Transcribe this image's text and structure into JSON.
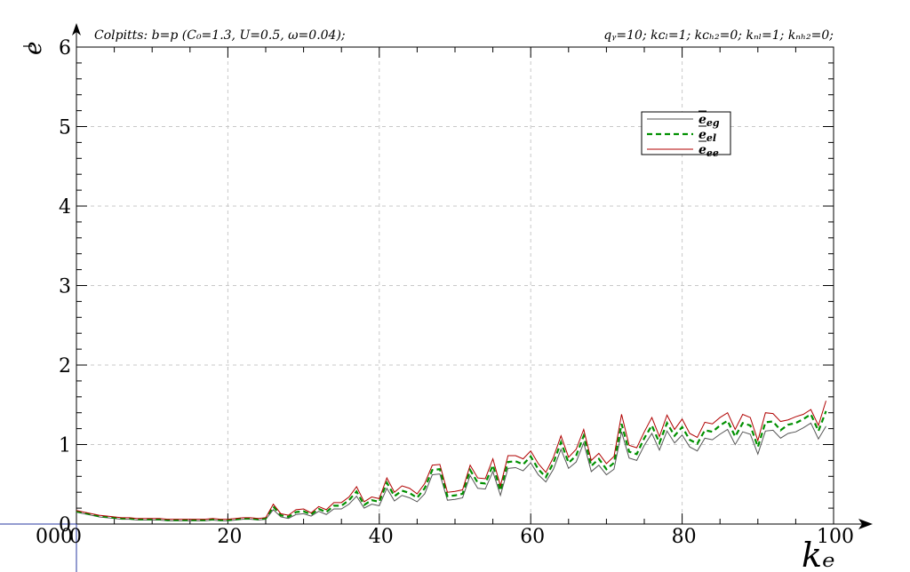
{
  "chart_data": {
    "type": "line",
    "title_left": "Colpitts: b=p (C₀=1.3, U=0.5, ω=0.04);",
    "title_right": "qᵧ=10; kᴄₗ=1; kᴄₕ₂=0; kₙₗ=1; kₙₕ₂=0;",
    "xlabel": "kₑ",
    "ylabel": "e",
    "xlim": [
      0,
      100
    ],
    "ylim": [
      0,
      6
    ],
    "x_ticks": [
      "0",
      "20",
      "40",
      "60",
      "80",
      "100"
    ],
    "x_tick_values": [
      0,
      20,
      40,
      60,
      80,
      100
    ],
    "x_origin_extra": "000",
    "y_ticks": [
      "0",
      "1",
      "2",
      "3",
      "4",
      "5",
      "6"
    ],
    "y_tick_values": [
      0,
      1,
      2,
      3,
      4,
      5,
      6
    ],
    "grid": true,
    "legend_position": "top-right",
    "x": [
      0,
      1,
      2,
      3,
      4,
      5,
      6,
      7,
      8,
      9,
      10,
      11,
      12,
      13,
      14,
      15,
      16,
      17,
      18,
      19,
      20,
      21,
      22,
      23,
      24,
      25,
      26,
      27,
      28,
      29,
      30,
      31,
      32,
      33,
      34,
      35,
      36,
      37,
      38,
      39,
      40,
      41,
      42,
      43,
      44,
      45,
      46,
      47,
      48,
      49,
      50,
      51,
      52,
      53,
      54,
      55,
      56,
      57,
      58,
      59,
      60,
      61,
      62,
      63,
      64,
      65,
      66,
      67,
      68,
      69,
      70,
      71,
      72,
      73,
      74,
      75,
      76,
      77,
      78,
      79,
      80,
      81,
      82,
      83,
      84,
      85,
      86,
      87,
      88,
      89,
      90,
      91,
      92,
      93,
      94,
      95,
      96,
      97,
      98,
      99
    ],
    "series": [
      {
        "name": "e_eg",
        "label_main": "e",
        "label_sub": "eg",
        "color": "#555555",
        "style": "solid",
        "values": [
          0.15,
          0.13,
          0.11,
          0.09,
          0.08,
          0.07,
          0.06,
          0.06,
          0.05,
          0.05,
          0.05,
          0.05,
          0.04,
          0.04,
          0.04,
          0.04,
          0.04,
          0.04,
          0.05,
          0.04,
          0.04,
          0.05,
          0.06,
          0.06,
          0.05,
          0.06,
          0.18,
          0.09,
          0.07,
          0.12,
          0.13,
          0.1,
          0.16,
          0.12,
          0.19,
          0.19,
          0.25,
          0.35,
          0.2,
          0.25,
          0.23,
          0.45,
          0.29,
          0.36,
          0.33,
          0.28,
          0.38,
          0.62,
          0.63,
          0.3,
          0.31,
          0.33,
          0.61,
          0.45,
          0.44,
          0.66,
          0.36,
          0.7,
          0.71,
          0.67,
          0.77,
          0.62,
          0.53,
          0.69,
          0.94,
          0.7,
          0.78,
          1.02,
          0.66,
          0.74,
          0.62,
          0.69,
          1.16,
          0.83,
          0.8,
          0.99,
          1.14,
          0.93,
          1.17,
          1.02,
          1.12,
          0.97,
          0.92,
          1.08,
          1.06,
          1.13,
          1.19,
          1.0,
          1.16,
          1.13,
          0.88,
          1.17,
          1.18,
          1.08,
          1.14,
          1.16,
          1.21,
          1.27,
          1.07,
          1.23
        ]
      },
      {
        "name": "e_el",
        "label_main": "e",
        "label_sub": "el",
        "color": "#009000",
        "style": "dashed",
        "values": [
          0.16,
          0.14,
          0.12,
          0.1,
          0.09,
          0.08,
          0.07,
          0.07,
          0.06,
          0.06,
          0.06,
          0.06,
          0.05,
          0.05,
          0.05,
          0.05,
          0.05,
          0.05,
          0.06,
          0.05,
          0.05,
          0.06,
          0.07,
          0.07,
          0.06,
          0.07,
          0.22,
          0.11,
          0.09,
          0.15,
          0.16,
          0.12,
          0.19,
          0.15,
          0.23,
          0.23,
          0.3,
          0.41,
          0.24,
          0.3,
          0.28,
          0.52,
          0.35,
          0.42,
          0.39,
          0.33,
          0.45,
          0.68,
          0.69,
          0.35,
          0.36,
          0.38,
          0.68,
          0.52,
          0.51,
          0.74,
          0.42,
          0.78,
          0.79,
          0.75,
          0.85,
          0.69,
          0.59,
          0.77,
          1.03,
          0.77,
          0.86,
          1.11,
          0.73,
          0.82,
          0.69,
          0.77,
          1.26,
          0.91,
          0.88,
          1.08,
          1.24,
          1.02,
          1.27,
          1.11,
          1.22,
          1.06,
          1.01,
          1.18,
          1.16,
          1.24,
          1.3,
          1.1,
          1.27,
          1.24,
          0.97,
          1.28,
          1.29,
          1.18,
          1.25,
          1.27,
          1.32,
          1.38,
          1.17,
          1.42
        ]
      },
      {
        "name": "e_ee",
        "label_main": "e",
        "label_sub": "ee",
        "color": "#b00000",
        "style": "solid",
        "values": [
          0.17,
          0.15,
          0.13,
          0.11,
          0.1,
          0.09,
          0.08,
          0.08,
          0.07,
          0.07,
          0.07,
          0.07,
          0.06,
          0.06,
          0.06,
          0.06,
          0.06,
          0.06,
          0.07,
          0.06,
          0.06,
          0.07,
          0.08,
          0.08,
          0.07,
          0.08,
          0.25,
          0.13,
          0.11,
          0.18,
          0.19,
          0.14,
          0.22,
          0.18,
          0.27,
          0.27,
          0.34,
          0.47,
          0.28,
          0.34,
          0.32,
          0.58,
          0.4,
          0.48,
          0.45,
          0.38,
          0.51,
          0.74,
          0.75,
          0.4,
          0.41,
          0.43,
          0.74,
          0.58,
          0.57,
          0.82,
          0.48,
          0.86,
          0.86,
          0.82,
          0.92,
          0.76,
          0.65,
          0.84,
          1.11,
          0.84,
          0.94,
          1.19,
          0.8,
          0.89,
          0.76,
          0.85,
          1.38,
          0.99,
          0.96,
          1.16,
          1.34,
          1.1,
          1.37,
          1.19,
          1.32,
          1.14,
          1.09,
          1.28,
          1.26,
          1.34,
          1.4,
          1.19,
          1.38,
          1.34,
          1.05,
          1.4,
          1.39,
          1.29,
          1.31,
          1.35,
          1.38,
          1.44,
          1.24,
          1.55
        ]
      }
    ]
  }
}
